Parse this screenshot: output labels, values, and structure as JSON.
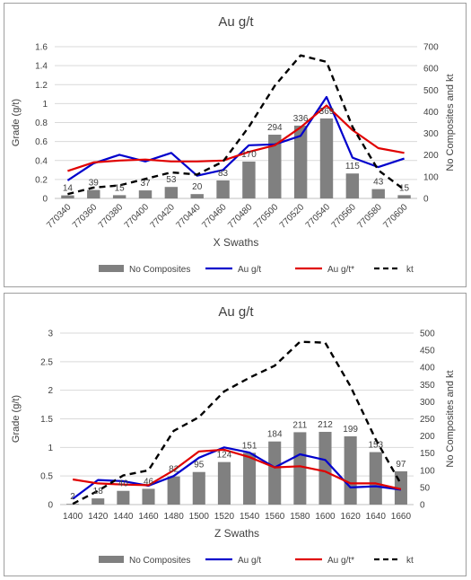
{
  "chart_data": [
    {
      "type": "bar",
      "title": "Au g/t",
      "xlabel": "X Swaths",
      "ylabel": "Grade (g/t)",
      "y2label": "No Composites and kt",
      "categories": [
        "770340",
        "770360",
        "770380",
        "770400",
        "770420",
        "770440",
        "770460",
        "770480",
        "770500",
        "770520",
        "770540",
        "770560",
        "770580",
        "770600"
      ],
      "ylim": [
        0,
        1.6
      ],
      "yticks": [
        "0",
        "0.2",
        "0.4",
        "0.6",
        "0.8",
        "1",
        "1.2",
        "1.4",
        "1.6"
      ],
      "y2lim": [
        0,
        700
      ],
      "y2ticks": [
        "0",
        "100",
        "200",
        "300",
        "400",
        "500",
        "600",
        "700"
      ],
      "grid": true,
      "legend_position": "bottom",
      "series": [
        {
          "name": "No Composites",
          "kind": "bar",
          "axis": "right",
          "color": "#808080",
          "values": [
            14,
            39,
            15,
            37,
            53,
            20,
            83,
            170,
            294,
            336,
            369,
            115,
            43,
            15
          ],
          "labels": [
            "14",
            "39",
            "15",
            "37",
            "53",
            "20",
            "83",
            "170",
            "294",
            "336",
            "369",
            "115",
            "43",
            "15"
          ]
        },
        {
          "name": "Au g/t",
          "kind": "line",
          "axis": "left",
          "color": "#0000cc",
          "values": [
            0.19,
            0.37,
            0.46,
            0.39,
            0.48,
            0.24,
            0.3,
            0.56,
            0.57,
            0.66,
            1.07,
            0.43,
            0.33,
            0.42
          ]
        },
        {
          "name": "Au g/t*",
          "kind": "line",
          "axis": "left",
          "color": "#e00000",
          "values": [
            0.29,
            0.38,
            0.4,
            0.41,
            0.39,
            0.39,
            0.4,
            0.49,
            0.56,
            0.75,
            0.98,
            0.72,
            0.53,
            0.48
          ]
        },
        {
          "name": "kt",
          "kind": "dashed",
          "axis": "right",
          "color": "#000000",
          "values": [
            20,
            50,
            60,
            90,
            120,
            110,
            170,
            330,
            520,
            660,
            630,
            330,
            130,
            40
          ]
        }
      ]
    },
    {
      "type": "bar",
      "title": "Au g/t",
      "xlabel": "Z Swaths",
      "ylabel": "Grade (g/t)",
      "y2label": "No Composites and kt",
      "categories": [
        "1400",
        "1420",
        "1440",
        "1460",
        "1480",
        "1500",
        "1520",
        "1540",
        "1560",
        "1580",
        "1600",
        "1620",
        "1640",
        "1660"
      ],
      "ylim": [
        0,
        3
      ],
      "yticks": [
        "0",
        "0.5",
        "1",
        "1.5",
        "2",
        "2.5",
        "3"
      ],
      "y2lim": [
        0,
        500
      ],
      "y2ticks": [
        "0",
        "50",
        "100",
        "150",
        "200",
        "250",
        "300",
        "350",
        "400",
        "450",
        "500"
      ],
      "grid": true,
      "legend_position": "bottom",
      "series": [
        {
          "name": "No Composites",
          "kind": "bar",
          "axis": "right",
          "color": "#808080",
          "values": [
            2,
            18,
            40,
            46,
            82,
            95,
            124,
            151,
            184,
            211,
            212,
            199,
            153,
            97
          ],
          "labels": [
            "2",
            "18",
            "40",
            "46",
            "82",
            "95",
            "124",
            "151",
            "184",
            "211",
            "212",
            "199",
            "153",
            "97"
          ]
        },
        {
          "name": "Au g/t",
          "kind": "line",
          "axis": "left",
          "color": "#0000cc",
          "values": [
            0.1,
            0.43,
            0.41,
            0.33,
            0.5,
            0.82,
            1.0,
            0.91,
            0.65,
            0.88,
            0.78,
            0.3,
            0.32,
            0.26
          ]
        },
        {
          "name": "Au g/t*",
          "kind": "line",
          "axis": "left",
          "color": "#e00000",
          "values": [
            0.44,
            0.37,
            0.35,
            0.34,
            0.6,
            0.93,
            0.96,
            0.83,
            0.65,
            0.67,
            0.58,
            0.37,
            0.37,
            0.27
          ]
        },
        {
          "name": "kt",
          "kind": "dashed",
          "axis": "right",
          "color": "#000000",
          "values": [
            2,
            40,
            85,
            100,
            215,
            255,
            330,
            370,
            405,
            475,
            472,
            345,
            190,
            60
          ]
        }
      ]
    }
  ]
}
